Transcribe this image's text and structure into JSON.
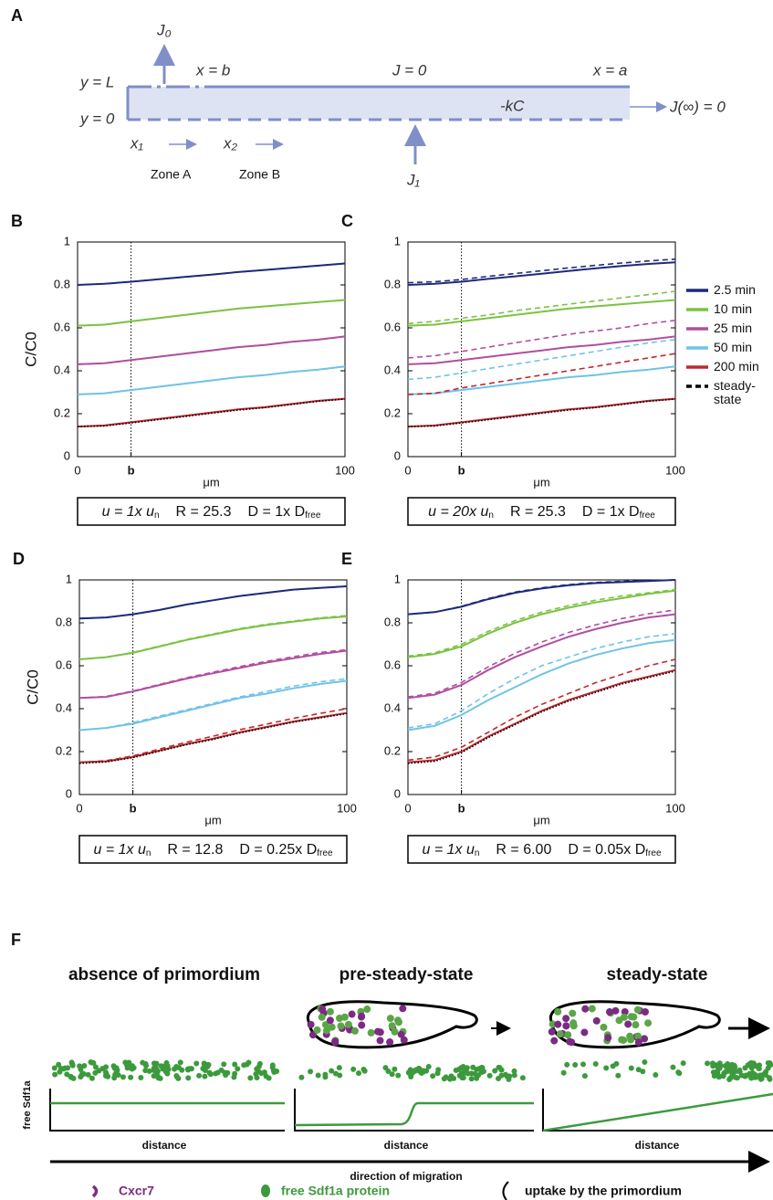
{
  "panel_a": {
    "label": "A",
    "J0": "J₀",
    "y_L": "y = L",
    "y_0": "y = 0",
    "x_b": "x = b",
    "J_zero": "J = 0",
    "x_a": "x = a",
    "kC": "-kC",
    "J_inf": "J(∞) = 0",
    "x1": "x₁",
    "x2": "x₂",
    "zone_a": "Zone A",
    "zone_b": "Zone B",
    "J1": "J₁"
  },
  "legend": [
    {
      "name": "2.5 min",
      "color": "#1f2a7a",
      "style": "solid"
    },
    {
      "name": "10 min",
      "color": "#7cc242",
      "style": "solid"
    },
    {
      "name": "25 min",
      "color": "#b04fa0",
      "style": "solid"
    },
    {
      "name": "50 min",
      "color": "#6fc3e8",
      "style": "solid"
    },
    {
      "name": "200 min",
      "color": "#c1272d",
      "style": "solid"
    },
    {
      "name": "steady-state",
      "color": "#000000",
      "style": "dashed"
    }
  ],
  "chart_data": [
    {
      "type": "line",
      "panel": "B",
      "ylabel": "C/C0",
      "xlabel": "μm",
      "x": [
        0,
        10,
        20,
        30,
        40,
        50,
        60,
        70,
        80,
        90,
        100
      ],
      "xlim": [
        0,
        100
      ],
      "xticks": [
        0,
        {
          "value": 20,
          "label": "b"
        },
        100
      ],
      "ylim": [
        0,
        1
      ],
      "yticks": [
        0,
        0.2,
        0.4,
        0.6,
        0.8,
        1
      ],
      "series": [
        {
          "color": "#1f2a7a",
          "values": [
            0.8,
            0.805,
            0.815,
            0.826,
            0.837,
            0.848,
            0.86,
            0.87,
            0.88,
            0.89,
            0.9
          ],
          "dashed_values": [
            0.8,
            0.805,
            0.815,
            0.826,
            0.837,
            0.848,
            0.86,
            0.87,
            0.88,
            0.89,
            0.9
          ]
        },
        {
          "color": "#7cc242",
          "values": [
            0.61,
            0.615,
            0.63,
            0.645,
            0.66,
            0.675,
            0.69,
            0.7,
            0.71,
            0.72,
            0.73
          ],
          "dashed_values": [
            0.61,
            0.615,
            0.63,
            0.645,
            0.66,
            0.675,
            0.69,
            0.7,
            0.71,
            0.72,
            0.73
          ]
        },
        {
          "color": "#b04fa0",
          "values": [
            0.43,
            0.435,
            0.45,
            0.465,
            0.48,
            0.495,
            0.51,
            0.52,
            0.535,
            0.545,
            0.56
          ],
          "dashed_values": [
            0.43,
            0.435,
            0.45,
            0.465,
            0.48,
            0.495,
            0.51,
            0.52,
            0.535,
            0.545,
            0.56
          ]
        },
        {
          "color": "#6fc3e8",
          "values": [
            0.29,
            0.295,
            0.31,
            0.325,
            0.34,
            0.355,
            0.37,
            0.38,
            0.395,
            0.405,
            0.42
          ],
          "dashed_values": [
            0.29,
            0.295,
            0.31,
            0.325,
            0.34,
            0.355,
            0.37,
            0.38,
            0.395,
            0.405,
            0.42
          ]
        },
        {
          "color": "#c1272d",
          "values": [
            0.14,
            0.145,
            0.16,
            0.175,
            0.19,
            0.205,
            0.22,
            0.23,
            0.245,
            0.26,
            0.27
          ],
          "dashed_values": [
            0.14,
            0.145,
            0.16,
            0.175,
            0.19,
            0.205,
            0.22,
            0.23,
            0.245,
            0.26,
            0.27
          ]
        }
      ],
      "steady_state": {
        "color": "#000000",
        "values": [
          0.14,
          0.143,
          0.157,
          0.172,
          0.187,
          0.202,
          0.217,
          0.228,
          0.243,
          0.258,
          0.268
        ]
      },
      "caption": {
        "u": "u = 1x u",
        "u_sub": "n",
        "R": "R = 25.3",
        "D": "D = 1x D",
        "D_sub": "free"
      }
    },
    {
      "type": "line",
      "panel": "C",
      "xlabel": "μm",
      "x": [
        0,
        10,
        20,
        30,
        40,
        50,
        60,
        70,
        80,
        90,
        100
      ],
      "xlim": [
        0,
        100
      ],
      "xticks": [
        0,
        {
          "value": 20,
          "label": "b"
        },
        100
      ],
      "ylim": [
        0,
        1
      ],
      "yticks": [
        0,
        0.2,
        0.4,
        0.6,
        0.8,
        1
      ],
      "series": [
        {
          "color": "#1f2a7a",
          "values": [
            0.8,
            0.805,
            0.815,
            0.828,
            0.84,
            0.852,
            0.865,
            0.877,
            0.888,
            0.898,
            0.905
          ],
          "dashed_values": [
            0.81,
            0.815,
            0.825,
            0.84,
            0.853,
            0.866,
            0.879,
            0.891,
            0.902,
            0.912,
            0.92
          ]
        },
        {
          "color": "#7cc242",
          "values": [
            0.61,
            0.615,
            0.63,
            0.645,
            0.66,
            0.675,
            0.69,
            0.7,
            0.71,
            0.72,
            0.73
          ],
          "dashed_values": [
            0.62,
            0.63,
            0.645,
            0.66,
            0.68,
            0.695,
            0.71,
            0.725,
            0.74,
            0.755,
            0.77
          ]
        },
        {
          "color": "#b04fa0",
          "values": [
            0.43,
            0.435,
            0.45,
            0.465,
            0.48,
            0.495,
            0.51,
            0.52,
            0.535,
            0.545,
            0.56
          ],
          "dashed_values": [
            0.46,
            0.47,
            0.49,
            0.51,
            0.53,
            0.55,
            0.57,
            0.585,
            0.6,
            0.62,
            0.635
          ]
        },
        {
          "color": "#6fc3e8",
          "values": [
            0.29,
            0.295,
            0.31,
            0.325,
            0.34,
            0.355,
            0.37,
            0.38,
            0.395,
            0.405,
            0.42
          ],
          "dashed_values": [
            0.36,
            0.37,
            0.39,
            0.41,
            0.43,
            0.45,
            0.47,
            0.49,
            0.51,
            0.53,
            0.545
          ]
        },
        {
          "color": "#c1272d",
          "values": [
            0.14,
            0.145,
            0.16,
            0.175,
            0.19,
            0.205,
            0.22,
            0.23,
            0.245,
            0.26,
            0.27
          ],
          "dashed_values": [
            0.29,
            0.295,
            0.32,
            0.34,
            0.36,
            0.38,
            0.4,
            0.42,
            0.44,
            0.46,
            0.48
          ]
        }
      ],
      "steady_state": {
        "color": "#000000",
        "values": [
          0.14,
          0.143,
          0.157,
          0.172,
          0.187,
          0.202,
          0.217,
          0.228,
          0.243,
          0.258,
          0.268
        ]
      },
      "caption": {
        "u": "u = 20x u",
        "u_sub": "n",
        "R": "R = 25.3",
        "D": "D = 1x D",
        "D_sub": "free"
      }
    },
    {
      "type": "line",
      "panel": "D",
      "ylabel": "C/C0",
      "xlabel": "μm",
      "x": [
        0,
        10,
        20,
        30,
        40,
        50,
        60,
        70,
        80,
        90,
        100
      ],
      "xlim": [
        0,
        100
      ],
      "xticks": [
        0,
        {
          "value": 20,
          "label": "b"
        },
        100
      ],
      "ylim": [
        0,
        1
      ],
      "yticks": [
        0,
        0.2,
        0.4,
        0.6,
        0.8,
        1
      ],
      "series": [
        {
          "color": "#1f2a7a",
          "values": [
            0.82,
            0.825,
            0.84,
            0.86,
            0.885,
            0.905,
            0.925,
            0.94,
            0.955,
            0.963,
            0.97
          ],
          "dashed_values": [
            0.82,
            0.825,
            0.84,
            0.86,
            0.885,
            0.905,
            0.925,
            0.94,
            0.955,
            0.963,
            0.97
          ]
        },
        {
          "color": "#7cc242",
          "values": [
            0.63,
            0.64,
            0.66,
            0.69,
            0.72,
            0.745,
            0.77,
            0.79,
            0.805,
            0.82,
            0.83
          ],
          "dashed_values": [
            0.63,
            0.64,
            0.662,
            0.692,
            0.722,
            0.748,
            0.773,
            0.793,
            0.808,
            0.823,
            0.834
          ]
        },
        {
          "color": "#b04fa0",
          "values": [
            0.45,
            0.455,
            0.48,
            0.51,
            0.54,
            0.565,
            0.59,
            0.615,
            0.635,
            0.655,
            0.67
          ],
          "dashed_values": [
            0.45,
            0.457,
            0.482,
            0.513,
            0.544,
            0.57,
            0.596,
            0.621,
            0.642,
            0.662,
            0.675
          ]
        },
        {
          "color": "#6fc3e8",
          "values": [
            0.3,
            0.31,
            0.33,
            0.36,
            0.39,
            0.42,
            0.45,
            0.47,
            0.495,
            0.515,
            0.53
          ],
          "dashed_values": [
            0.3,
            0.31,
            0.335,
            0.365,
            0.395,
            0.425,
            0.455,
            0.48,
            0.505,
            0.525,
            0.54
          ]
        },
        {
          "color": "#c1272d",
          "values": [
            0.15,
            0.155,
            0.175,
            0.205,
            0.235,
            0.26,
            0.29,
            0.315,
            0.34,
            0.36,
            0.38
          ],
          "dashed_values": [
            0.15,
            0.158,
            0.18,
            0.212,
            0.244,
            0.272,
            0.302,
            0.328,
            0.355,
            0.378,
            0.4
          ]
        }
      ],
      "steady_state": {
        "color": "#000000",
        "values": [
          0.145,
          0.152,
          0.172,
          0.202,
          0.232,
          0.257,
          0.287,
          0.312,
          0.337,
          0.357,
          0.377
        ]
      },
      "caption": {
        "u": "u = 1x u",
        "u_sub": "n",
        "R": "R = 12.8",
        "D": "D = 0.25x D",
        "D_sub": "free"
      }
    },
    {
      "type": "line",
      "panel": "E",
      "xlabel": "μm",
      "x": [
        0,
        10,
        20,
        30,
        40,
        50,
        60,
        70,
        80,
        90,
        100
      ],
      "xlim": [
        0,
        100
      ],
      "xticks": [
        0,
        {
          "value": 20,
          "label": "b"
        },
        100
      ],
      "ylim": [
        0,
        1
      ],
      "yticks": [
        0,
        0.2,
        0.4,
        0.6,
        0.8,
        1
      ],
      "series": [
        {
          "color": "#1f2a7a",
          "values": [
            0.84,
            0.85,
            0.875,
            0.91,
            0.94,
            0.96,
            0.975,
            0.985,
            0.99,
            0.995,
            1
          ],
          "dashed_values": [
            0.84,
            0.85,
            0.877,
            0.913,
            0.943,
            0.963,
            0.978,
            0.988,
            0.993,
            0.997,
            1
          ]
        },
        {
          "color": "#7cc242",
          "values": [
            0.64,
            0.655,
            0.69,
            0.75,
            0.8,
            0.84,
            0.87,
            0.895,
            0.915,
            0.935,
            0.95
          ],
          "dashed_values": [
            0.645,
            0.66,
            0.7,
            0.76,
            0.81,
            0.85,
            0.88,
            0.905,
            0.925,
            0.94,
            0.955
          ]
        },
        {
          "color": "#b04fa0",
          "values": [
            0.45,
            0.465,
            0.51,
            0.58,
            0.64,
            0.69,
            0.735,
            0.77,
            0.8,
            0.825,
            0.84
          ],
          "dashed_values": [
            0.455,
            0.472,
            0.522,
            0.595,
            0.658,
            0.71,
            0.755,
            0.79,
            0.82,
            0.842,
            0.86
          ]
        },
        {
          "color": "#6fc3e8",
          "values": [
            0.3,
            0.32,
            0.37,
            0.44,
            0.5,
            0.56,
            0.61,
            0.65,
            0.68,
            0.705,
            0.72
          ],
          "dashed_values": [
            0.31,
            0.33,
            0.39,
            0.47,
            0.54,
            0.6,
            0.64,
            0.68,
            0.71,
            0.735,
            0.75
          ]
        },
        {
          "color": "#c1272d",
          "values": [
            0.15,
            0.16,
            0.2,
            0.27,
            0.33,
            0.39,
            0.44,
            0.48,
            0.52,
            0.55,
            0.58
          ],
          "dashed_values": [
            0.16,
            0.175,
            0.22,
            0.29,
            0.36,
            0.42,
            0.47,
            0.52,
            0.56,
            0.6,
            0.63
          ]
        }
      ],
      "steady_state": {
        "color": "#000000",
        "values": [
          0.145,
          0.155,
          0.195,
          0.265,
          0.325,
          0.385,
          0.435,
          0.475,
          0.515,
          0.545,
          0.575
        ]
      },
      "caption": {
        "u": "u = 1x u",
        "u_sub": "n",
        "R": "R = 6.00",
        "D": "D = 0.05x D",
        "D_sub": "free"
      }
    }
  ],
  "panel_f": {
    "label": "F",
    "titles": [
      "absence of primordium",
      "pre-steady-state",
      "steady-state"
    ],
    "ylabel": "free Sdf1a",
    "xlabels": [
      "distance",
      "distance",
      "distance"
    ],
    "arrow_label": "direction of migration",
    "key": [
      "Cxcr7",
      "free Sdf1a protein",
      "uptake by the primordium"
    ]
  }
}
